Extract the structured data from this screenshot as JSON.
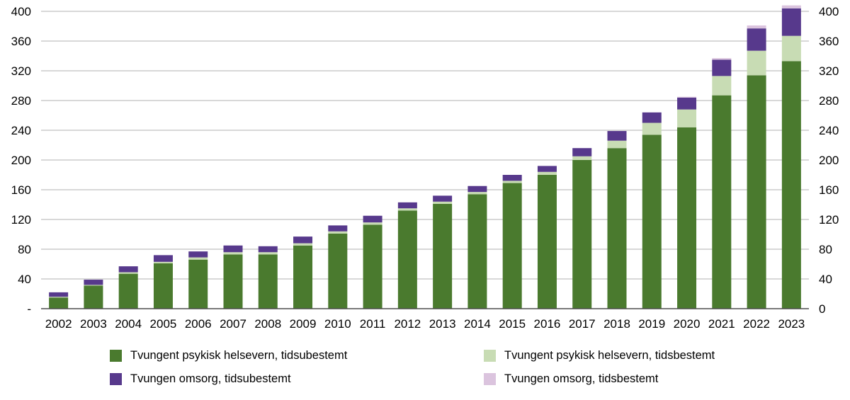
{
  "chart_data": {
    "type": "bar",
    "stacked": true,
    "title": "",
    "xlabel": "",
    "ylabel": "",
    "categories": [
      "2002",
      "2003",
      "2004",
      "2005",
      "2006",
      "2007",
      "2008",
      "2009",
      "2010",
      "2011",
      "2012",
      "2013",
      "2014",
      "2015",
      "2016",
      "2017",
      "2018",
      "2019",
      "2020",
      "2021",
      "2022",
      "2023"
    ],
    "series": [
      {
        "name": "Tvungent psykisk helsevern, tidsubestemt",
        "color": "#4a7a2e",
        "values": [
          15,
          31,
          47,
          61,
          66,
          73,
          73,
          85,
          101,
          113,
          132,
          141,
          154,
          169,
          180,
          200,
          216,
          234,
          244,
          287,
          314,
          333
        ]
      },
      {
        "name": "Tvungent psykisk helsevern, tidsbestemt",
        "color": "#c8dcb4",
        "values": [
          1,
          1,
          2,
          2,
          3,
          3,
          3,
          3,
          3,
          3,
          3,
          3,
          3,
          3,
          4,
          5,
          10,
          16,
          24,
          26,
          33,
          34
        ]
      },
      {
        "name": "Tvungen omsorg, tidsubestemt",
        "color": "#57398c",
        "values": [
          6,
          7,
          8,
          9,
          8,
          9,
          8,
          9,
          8,
          9,
          8,
          8,
          8,
          8,
          8,
          11,
          13,
          14,
          16,
          22,
          30,
          37
        ]
      },
      {
        "name": "Tvungen omsorg, tidsbestemt",
        "color": "#dbc4de",
        "values": [
          0,
          0,
          0,
          0,
          0,
          0,
          0,
          0,
          0,
          0,
          0,
          0,
          0,
          0,
          0,
          0,
          0,
          0,
          1,
          2,
          4,
          4
        ]
      }
    ],
    "ylim": [
      0,
      400
    ],
    "ytick_step": 40,
    "yaxis_left_zero_label": "-",
    "yaxis_right_zero_label": "0",
    "grid": true,
    "gridline_color": "#b2b2b2",
    "baseline_color": "#4d4d4d",
    "legend_position": "bottom"
  }
}
